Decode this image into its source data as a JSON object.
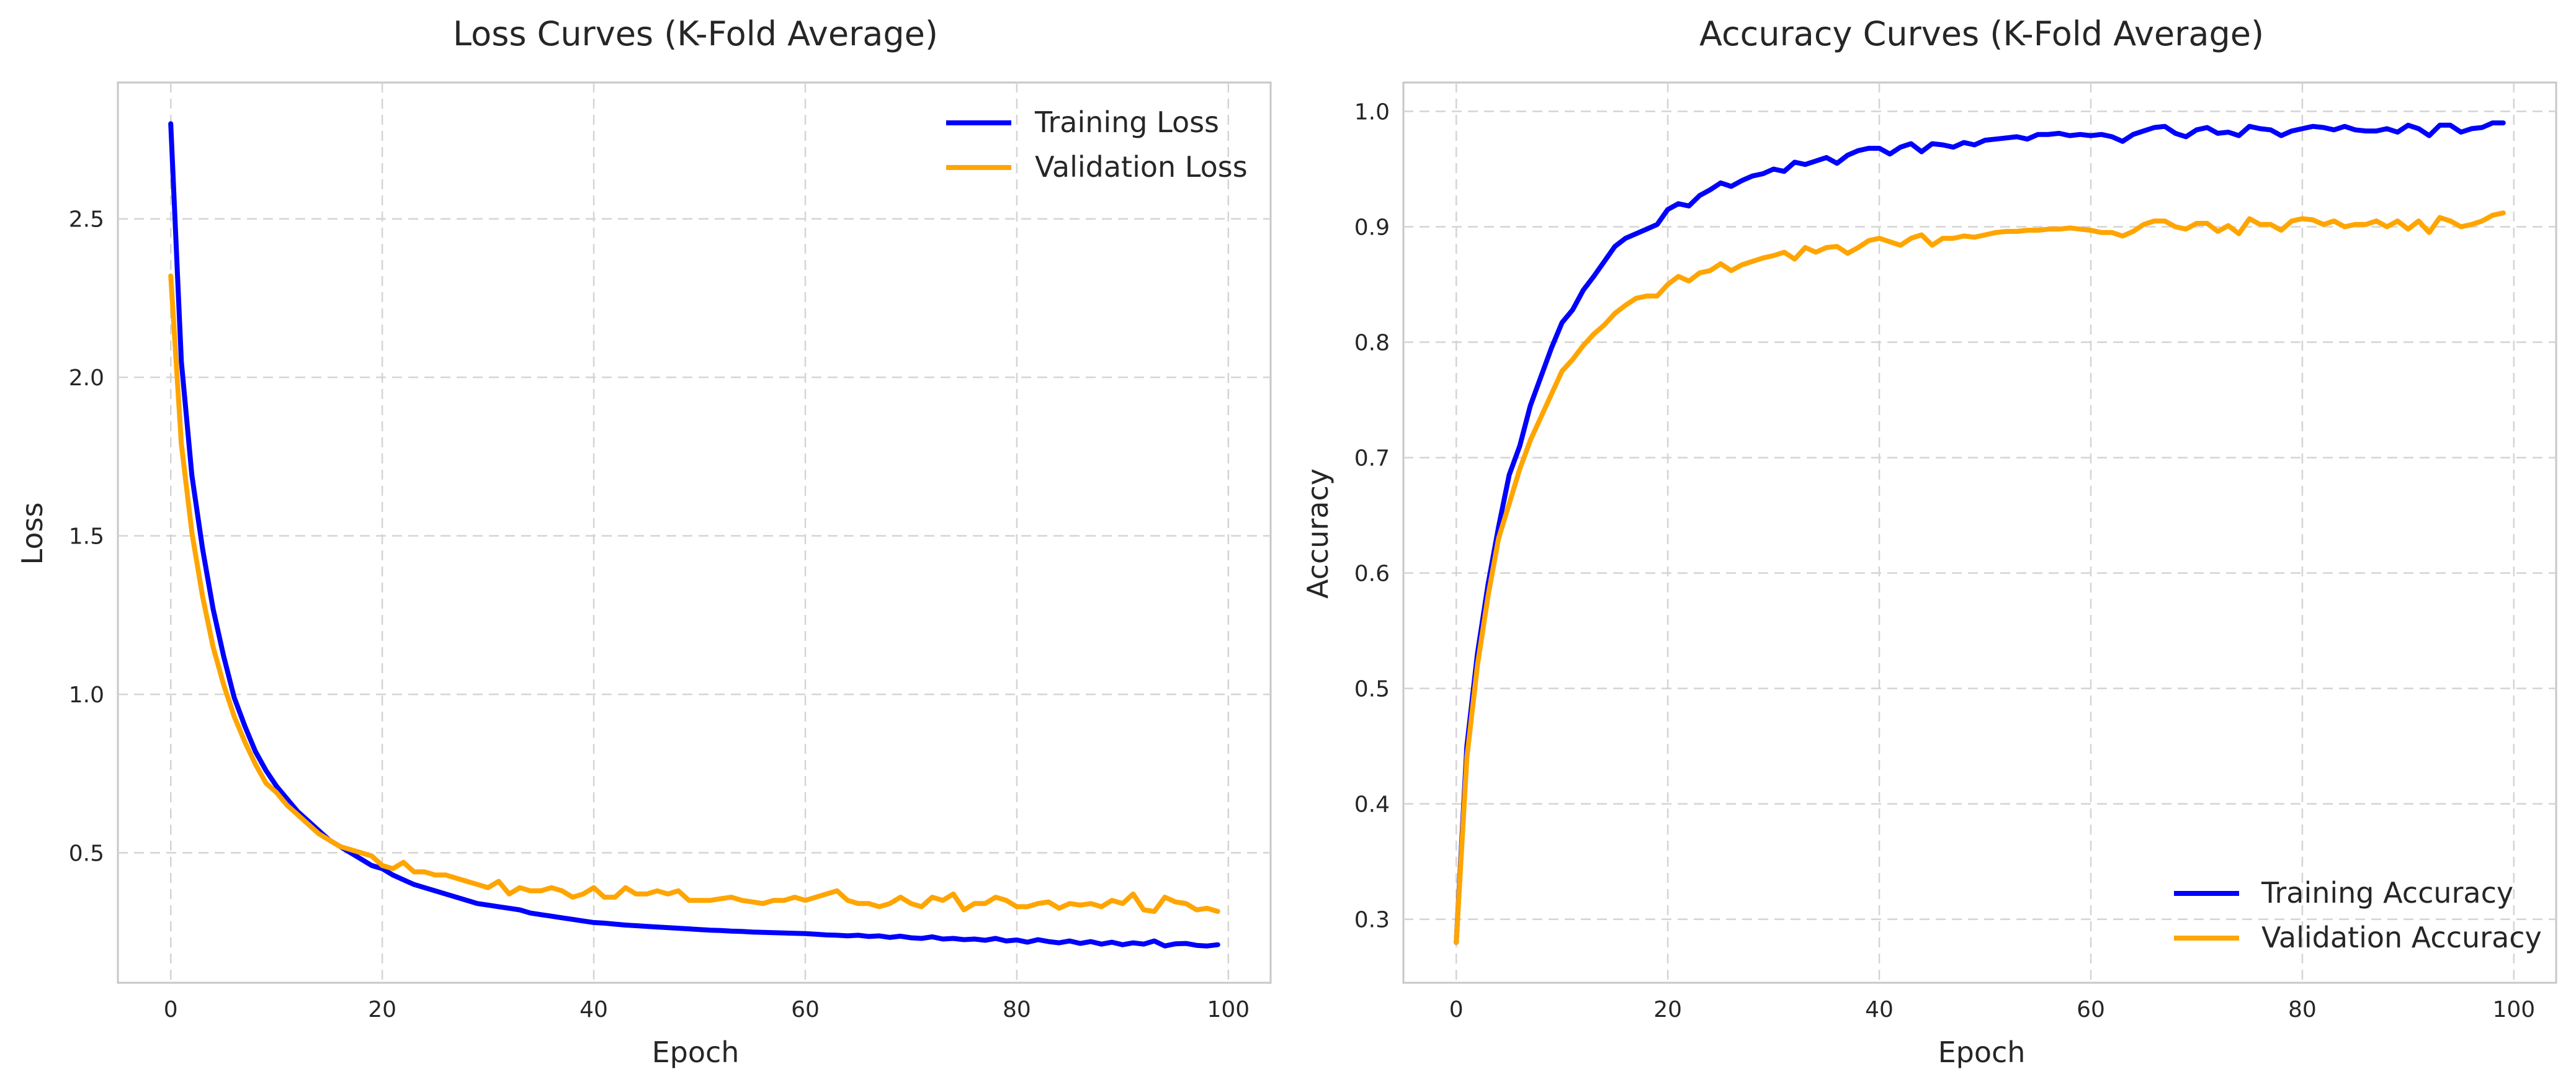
{
  "chart_data": [
    {
      "type": "line",
      "title": "Loss Curves (K-Fold Average)",
      "xlabel": "Epoch",
      "ylabel": "Loss",
      "xlim": [
        -5,
        104
      ],
      "ylim": [
        0.09,
        2.93
      ],
      "xticks": [
        0,
        20,
        40,
        60,
        80,
        100
      ],
      "yticks": [
        0.5,
        1.0,
        1.5,
        2.0,
        2.5
      ],
      "ytick_format": 1,
      "grid": true,
      "legend": "upper right",
      "series": [
        {
          "name": "Training Loss",
          "color": "#0000ff",
          "x": [
            0,
            1,
            2,
            3,
            4,
            5,
            6,
            7,
            8,
            9,
            10,
            11,
            12,
            13,
            14,
            15,
            16,
            17,
            18,
            19,
            20,
            21,
            22,
            23,
            24,
            25,
            26,
            27,
            28,
            29,
            30,
            31,
            32,
            33,
            34,
            35,
            36,
            37,
            38,
            39,
            40,
            41,
            42,
            43,
            44,
            45,
            46,
            47,
            48,
            49,
            50,
            51,
            52,
            53,
            54,
            55,
            56,
            57,
            58,
            59,
            60,
            61,
            62,
            63,
            64,
            65,
            66,
            67,
            68,
            69,
            70,
            71,
            72,
            73,
            74,
            75,
            76,
            77,
            78,
            79,
            80,
            81,
            82,
            83,
            84,
            85,
            86,
            87,
            88,
            89,
            90,
            91,
            92,
            93,
            94,
            95,
            96,
            97,
            98,
            99
          ],
          "y": [
            2.8,
            2.05,
            1.69,
            1.46,
            1.27,
            1.12,
            0.99,
            0.9,
            0.82,
            0.76,
            0.71,
            0.67,
            0.63,
            0.6,
            0.57,
            0.54,
            0.52,
            0.5,
            0.48,
            0.46,
            0.45,
            0.43,
            0.415,
            0.4,
            0.39,
            0.38,
            0.37,
            0.36,
            0.35,
            0.34,
            0.335,
            0.33,
            0.325,
            0.32,
            0.31,
            0.305,
            0.3,
            0.295,
            0.29,
            0.285,
            0.28,
            0.278,
            0.275,
            0.272,
            0.27,
            0.268,
            0.266,
            0.264,
            0.262,
            0.26,
            0.258,
            0.256,
            0.255,
            0.253,
            0.252,
            0.25,
            0.249,
            0.248,
            0.247,
            0.246,
            0.245,
            0.243,
            0.241,
            0.24,
            0.238,
            0.24,
            0.236,
            0.238,
            0.233,
            0.237,
            0.232,
            0.23,
            0.235,
            0.228,
            0.23,
            0.226,
            0.228,
            0.224,
            0.23,
            0.222,
            0.225,
            0.218,
            0.226,
            0.22,
            0.216,
            0.222,
            0.214,
            0.22,
            0.212,
            0.218,
            0.21,
            0.216,
            0.212,
            0.222,
            0.206,
            0.213,
            0.214,
            0.208,
            0.206,
            0.21
          ]
        },
        {
          "name": "Validation Loss",
          "color": "#ffa500",
          "x": [
            0,
            1,
            2,
            3,
            4,
            5,
            6,
            7,
            8,
            9,
            10,
            11,
            12,
            13,
            14,
            15,
            16,
            17,
            18,
            19,
            20,
            21,
            22,
            23,
            24,
            25,
            26,
            27,
            28,
            29,
            30,
            31,
            32,
            33,
            34,
            35,
            36,
            37,
            38,
            39,
            40,
            41,
            42,
            43,
            44,
            45,
            46,
            47,
            48,
            49,
            50,
            51,
            52,
            53,
            54,
            55,
            56,
            57,
            58,
            59,
            60,
            61,
            62,
            63,
            64,
            65,
            66,
            67,
            68,
            69,
            70,
            71,
            72,
            73,
            74,
            75,
            76,
            77,
            78,
            79,
            80,
            81,
            82,
            83,
            84,
            85,
            86,
            87,
            88,
            89,
            90,
            91,
            92,
            93,
            94,
            95,
            96,
            97,
            98,
            99
          ],
          "y": [
            2.32,
            1.79,
            1.51,
            1.31,
            1.15,
            1.03,
            0.93,
            0.85,
            0.78,
            0.72,
            0.69,
            0.65,
            0.62,
            0.59,
            0.56,
            0.54,
            0.52,
            0.51,
            0.5,
            0.49,
            0.46,
            0.45,
            0.47,
            0.44,
            0.44,
            0.43,
            0.43,
            0.42,
            0.41,
            0.4,
            0.39,
            0.41,
            0.37,
            0.39,
            0.38,
            0.38,
            0.39,
            0.38,
            0.36,
            0.37,
            0.39,
            0.36,
            0.36,
            0.39,
            0.37,
            0.37,
            0.38,
            0.37,
            0.38,
            0.35,
            0.35,
            0.35,
            0.355,
            0.36,
            0.35,
            0.345,
            0.34,
            0.35,
            0.35,
            0.36,
            0.35,
            0.36,
            0.37,
            0.38,
            0.35,
            0.34,
            0.34,
            0.33,
            0.34,
            0.36,
            0.34,
            0.33,
            0.36,
            0.35,
            0.37,
            0.32,
            0.34,
            0.34,
            0.36,
            0.35,
            0.33,
            0.33,
            0.34,
            0.345,
            0.325,
            0.34,
            0.335,
            0.34,
            0.33,
            0.35,
            0.34,
            0.37,
            0.32,
            0.315,
            0.36,
            0.345,
            0.34,
            0.32,
            0.325,
            0.315
          ]
        }
      ]
    },
    {
      "type": "line",
      "title": "Accuracy Curves (K-Fold Average)",
      "xlabel": "Epoch",
      "ylabel": "Accuracy",
      "xlim": [
        -5,
        104
      ],
      "ylim": [
        0.245,
        1.025
      ],
      "xticks": [
        0,
        20,
        40,
        60,
        80,
        100
      ],
      "yticks": [
        0.3,
        0.4,
        0.5,
        0.6,
        0.7,
        0.8,
        0.9,
        1.0
      ],
      "ytick_format": 1,
      "grid": true,
      "legend": "lower right",
      "series": [
        {
          "name": "Training Accuracy",
          "color": "#0000ff",
          "x": [
            0,
            1,
            2,
            3,
            4,
            5,
            6,
            7,
            8,
            9,
            10,
            11,
            12,
            13,
            14,
            15,
            16,
            17,
            18,
            19,
            20,
            21,
            22,
            23,
            24,
            25,
            26,
            27,
            28,
            29,
            30,
            31,
            32,
            33,
            34,
            35,
            36,
            37,
            38,
            39,
            40,
            41,
            42,
            43,
            44,
            45,
            46,
            47,
            48,
            49,
            50,
            51,
            52,
            53,
            54,
            55,
            56,
            57,
            58,
            59,
            60,
            61,
            62,
            63,
            64,
            65,
            66,
            67,
            68,
            69,
            70,
            71,
            72,
            73,
            74,
            75,
            76,
            77,
            78,
            79,
            80,
            81,
            82,
            83,
            84,
            85,
            86,
            87,
            88,
            89,
            90,
            91,
            92,
            93,
            94,
            95,
            96,
            97,
            98,
            99
          ],
          "y": [
            0.28,
            0.45,
            0.53,
            0.59,
            0.64,
            0.685,
            0.71,
            0.745,
            0.77,
            0.795,
            0.817,
            0.828,
            0.845,
            0.857,
            0.87,
            0.883,
            0.89,
            0.894,
            0.898,
            0.902,
            0.915,
            0.92,
            0.918,
            0.927,
            0.932,
            0.938,
            0.935,
            0.94,
            0.944,
            0.946,
            0.95,
            0.948,
            0.956,
            0.954,
            0.957,
            0.96,
            0.955,
            0.962,
            0.966,
            0.968,
            0.968,
            0.963,
            0.969,
            0.972,
            0.965,
            0.972,
            0.971,
            0.969,
            0.973,
            0.971,
            0.975,
            0.976,
            0.977,
            0.978,
            0.976,
            0.98,
            0.98,
            0.981,
            0.979,
            0.98,
            0.979,
            0.98,
            0.978,
            0.974,
            0.98,
            0.983,
            0.986,
            0.987,
            0.981,
            0.978,
            0.984,
            0.986,
            0.981,
            0.982,
            0.979,
            0.987,
            0.985,
            0.984,
            0.979,
            0.983,
            0.985,
            0.987,
            0.986,
            0.984,
            0.987,
            0.984,
            0.983,
            0.983,
            0.985,
            0.982,
            0.988,
            0.985,
            0.979,
            0.988,
            0.988,
            0.982,
            0.985,
            0.986,
            0.99,
            0.99
          ]
        },
        {
          "name": "Validation Accuracy",
          "color": "#ffa500",
          "x": [
            0,
            1,
            2,
            3,
            4,
            5,
            6,
            7,
            8,
            9,
            10,
            11,
            12,
            13,
            14,
            15,
            16,
            17,
            18,
            19,
            20,
            21,
            22,
            23,
            24,
            25,
            26,
            27,
            28,
            29,
            30,
            31,
            32,
            33,
            34,
            35,
            36,
            37,
            38,
            39,
            40,
            41,
            42,
            43,
            44,
            45,
            46,
            47,
            48,
            49,
            50,
            51,
            52,
            53,
            54,
            55,
            56,
            57,
            58,
            59,
            60,
            61,
            62,
            63,
            64,
            65,
            66,
            67,
            68,
            69,
            70,
            71,
            72,
            73,
            74,
            75,
            76,
            77,
            78,
            79,
            80,
            81,
            82,
            83,
            84,
            85,
            86,
            87,
            88,
            89,
            90,
            91,
            92,
            93,
            94,
            95,
            96,
            97,
            98,
            99
          ],
          "y": [
            0.28,
            0.44,
            0.52,
            0.58,
            0.63,
            0.66,
            0.69,
            0.715,
            0.735,
            0.755,
            0.775,
            0.785,
            0.797,
            0.807,
            0.815,
            0.825,
            0.832,
            0.838,
            0.84,
            0.84,
            0.85,
            0.857,
            0.853,
            0.86,
            0.862,
            0.868,
            0.862,
            0.867,
            0.87,
            0.873,
            0.875,
            0.878,
            0.872,
            0.882,
            0.878,
            0.882,
            0.883,
            0.877,
            0.882,
            0.888,
            0.89,
            0.887,
            0.884,
            0.89,
            0.893,
            0.884,
            0.89,
            0.89,
            0.892,
            0.891,
            0.893,
            0.895,
            0.896,
            0.896,
            0.897,
            0.897,
            0.898,
            0.898,
            0.899,
            0.898,
            0.897,
            0.895,
            0.895,
            0.892,
            0.896,
            0.902,
            0.905,
            0.905,
            0.9,
            0.898,
            0.903,
            0.903,
            0.896,
            0.901,
            0.894,
            0.907,
            0.902,
            0.902,
            0.897,
            0.905,
            0.907,
            0.906,
            0.902,
            0.905,
            0.9,
            0.902,
            0.902,
            0.905,
            0.9,
            0.905,
            0.898,
            0.905,
            0.895,
            0.908,
            0.905,
            0.9,
            0.902,
            0.905,
            0.91,
            0.912
          ]
        }
      ]
    }
  ]
}
